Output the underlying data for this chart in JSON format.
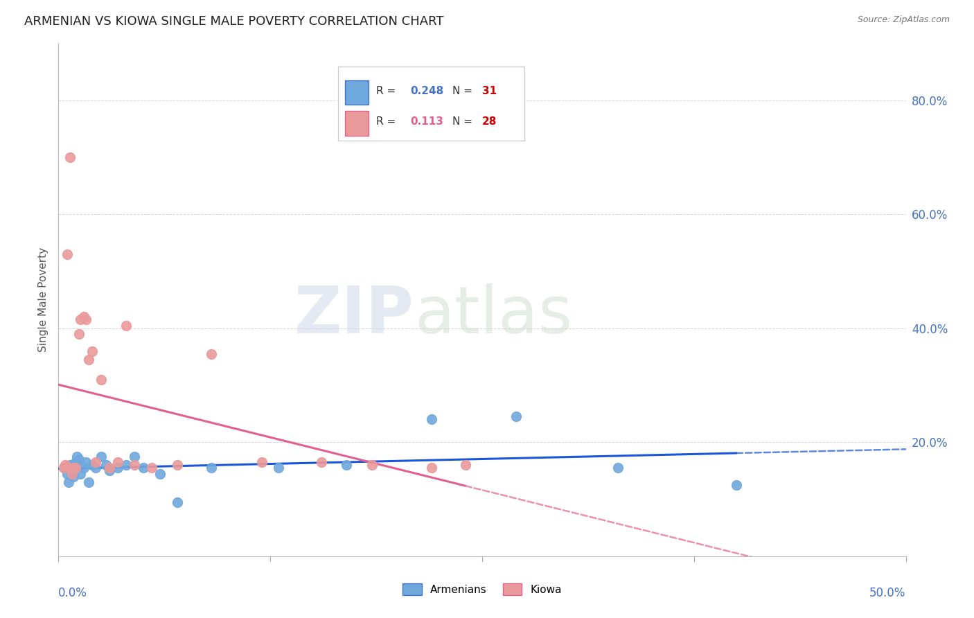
{
  "title": "ARMENIAN VS KIOWA SINGLE MALE POVERTY CORRELATION CHART",
  "source": "Source: ZipAtlas.com",
  "ylabel": "Single Male Poverty",
  "xlim": [
    0.0,
    0.5
  ],
  "ylim": [
    0.0,
    0.9
  ],
  "yticks": [
    0.0,
    0.2,
    0.4,
    0.6,
    0.8
  ],
  "ytick_labels": [
    "",
    "20.0%",
    "40.0%",
    "60.0%",
    "80.0%"
  ],
  "xtick_positions": [
    0.0,
    0.125,
    0.25,
    0.375,
    0.5
  ],
  "watermark": "ZIPatlas",
  "armenian_R": 0.248,
  "armenian_N": 31,
  "kiowa_R": 0.113,
  "kiowa_N": 28,
  "armenian_color": "#6fa8dc",
  "kiowa_color": "#ea9999",
  "armenian_line_color": "#1a56db",
  "kiowa_line_color": "#e06090",
  "background_color": "#ffffff",
  "armenian_x": [
    0.003,
    0.005,
    0.006,
    0.007,
    0.008,
    0.009,
    0.01,
    0.011,
    0.012,
    0.013,
    0.015,
    0.016,
    0.018,
    0.02,
    0.022,
    0.025,
    0.028,
    0.03,
    0.035,
    0.04,
    0.045,
    0.05,
    0.06,
    0.07,
    0.09,
    0.13,
    0.17,
    0.22,
    0.27,
    0.33,
    0.4
  ],
  "armenian_y": [
    0.155,
    0.145,
    0.13,
    0.16,
    0.15,
    0.14,
    0.165,
    0.175,
    0.17,
    0.145,
    0.155,
    0.165,
    0.13,
    0.16,
    0.155,
    0.175,
    0.16,
    0.15,
    0.155,
    0.16,
    0.175,
    0.155,
    0.145,
    0.095,
    0.155,
    0.155,
    0.16,
    0.24,
    0.245,
    0.155,
    0.125
  ],
  "kiowa_x": [
    0.003,
    0.004,
    0.005,
    0.006,
    0.007,
    0.008,
    0.009,
    0.01,
    0.012,
    0.013,
    0.015,
    0.016,
    0.018,
    0.02,
    0.022,
    0.025,
    0.03,
    0.035,
    0.04,
    0.045,
    0.055,
    0.07,
    0.09,
    0.12,
    0.155,
    0.185,
    0.22,
    0.24
  ],
  "kiowa_y": [
    0.155,
    0.16,
    0.53,
    0.155,
    0.7,
    0.145,
    0.155,
    0.155,
    0.39,
    0.415,
    0.42,
    0.415,
    0.345,
    0.36,
    0.165,
    0.31,
    0.155,
    0.165,
    0.405,
    0.16,
    0.155,
    0.16,
    0.355,
    0.165,
    0.165,
    0.16,
    0.155,
    0.16
  ],
  "grid_color": "#cccccc",
  "title_fontsize": 13,
  "legend_fontsize": 11,
  "axis_label_fontsize": 10,
  "tick_fontsize": 11,
  "right_tick_color": "#4472c4",
  "legend_R_color_armenian": "#4472c4",
  "legend_R_color_kiowa": "#e06090",
  "legend_N_color": "#cc0000"
}
